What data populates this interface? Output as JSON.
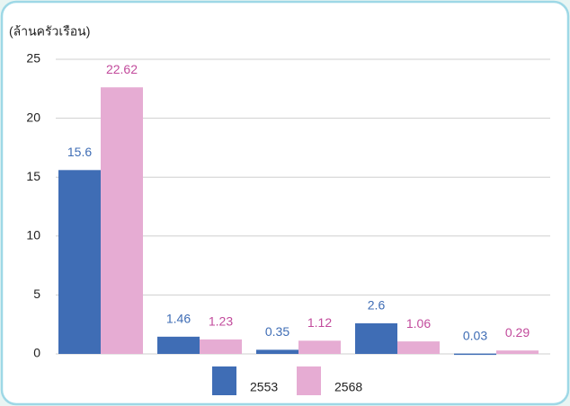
{
  "chart_data": {
    "type": "bar",
    "y_label": "(ล้านครัวเรือน)",
    "categories": [
      null,
      null,
      null,
      null,
      null
    ],
    "series": [
      {
        "name": "2553",
        "color": "#3f6db5",
        "label_color": "#3f6db5",
        "values": [
          15.6,
          1.46,
          0.35,
          2.6,
          0.03
        ]
      },
      {
        "name": "2568",
        "color": "#e6acd3",
        "label_color": "#c24b9c",
        "values": [
          22.62,
          1.23,
          1.12,
          1.06,
          0.29
        ]
      }
    ],
    "ylim": [
      0,
      25
    ],
    "yticks": [
      0,
      5,
      10,
      15,
      20,
      25
    ],
    "grid": true
  }
}
